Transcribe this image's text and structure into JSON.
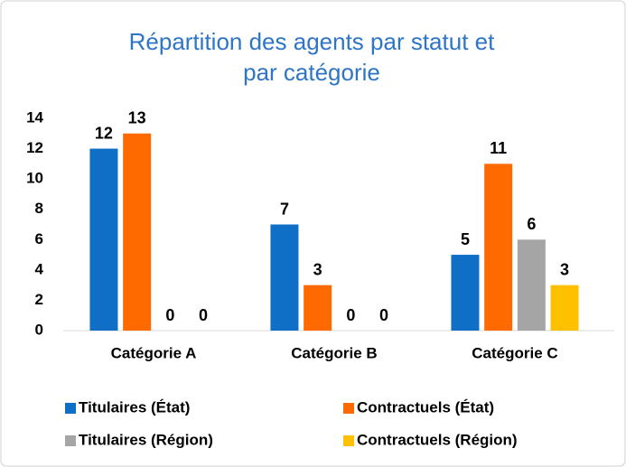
{
  "chart_data": {
    "type": "bar",
    "title": [
      "Répartition des agents par statut et",
      "par catégorie"
    ],
    "categories": [
      "Catégorie A",
      "Catégorie B",
      "Catégorie C"
    ],
    "series": [
      {
        "name": "Titulaires (État)",
        "color": "#0f6fc6",
        "values": [
          12,
          7,
          5
        ]
      },
      {
        "name": "Contractuels (État)",
        "color": "#ff6a00",
        "values": [
          13,
          3,
          11
        ]
      },
      {
        "name": "Titulaires (Région)",
        "color": "#a5a5a5",
        "values": [
          0,
          0,
          6
        ]
      },
      {
        "name": "Contractuels (Région)",
        "color": "#ffc000",
        "values": [
          0,
          0,
          3
        ]
      }
    ],
    "ylim": [
      0,
      14
    ],
    "yticks": [
      0,
      2,
      4,
      6,
      8,
      10,
      12,
      14
    ],
    "grid": false,
    "legend": "bottom"
  }
}
